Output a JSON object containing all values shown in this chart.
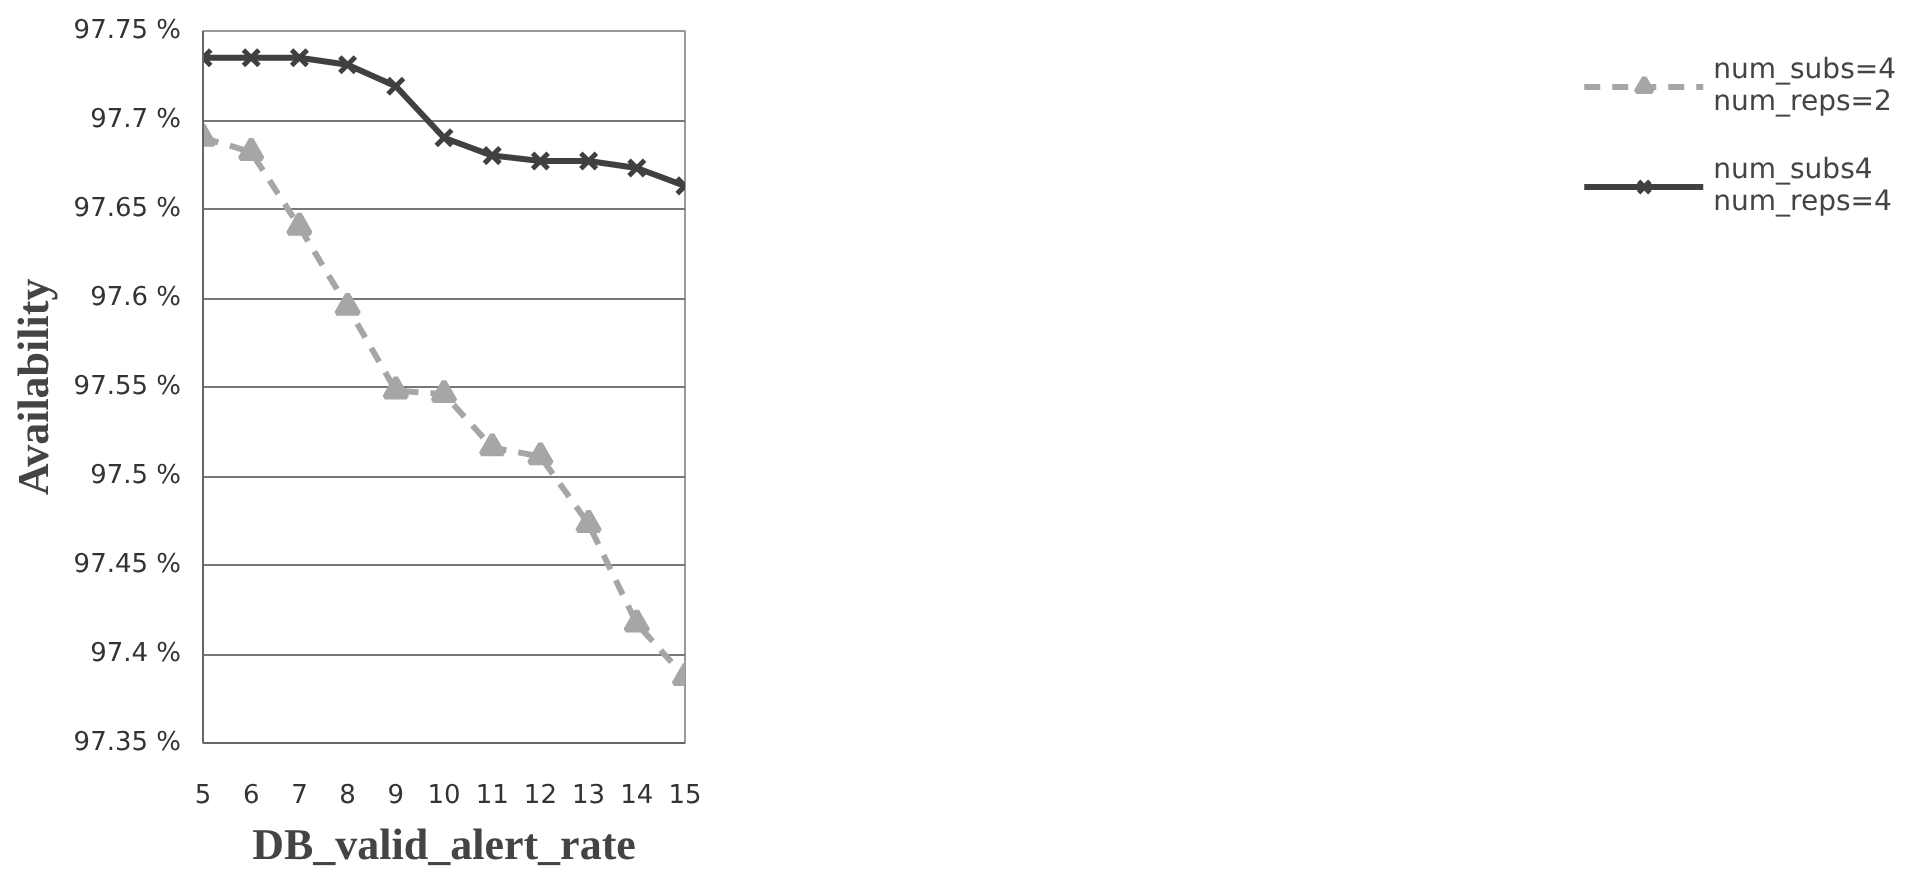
{
  "chart_data": {
    "type": "line",
    "xlabel": "DB_valid_alert_rate",
    "ylabel": "Availability",
    "x": [
      5,
      6,
      7,
      8,
      9,
      10,
      11,
      12,
      13,
      14,
      15
    ],
    "xlim": [
      5,
      15
    ],
    "xticks": [
      5,
      6,
      7,
      8,
      9,
      10,
      11,
      12,
      13,
      14,
      15
    ],
    "ylim": [
      97.35,
      97.75
    ],
    "yticks": [
      {
        "value": 97.35,
        "label": "97.35 %"
      },
      {
        "value": 97.4,
        "label": "97.4 %"
      },
      {
        "value": 97.45,
        "label": "97.45 %"
      },
      {
        "value": 97.5,
        "label": "97.5 %"
      },
      {
        "value": 97.55,
        "label": "97.55 %"
      },
      {
        "value": 97.6,
        "label": "97.6 %"
      },
      {
        "value": 97.65,
        "label": "97.65 %"
      },
      {
        "value": 97.7,
        "label": "97.7 %"
      },
      {
        "value": 97.75,
        "label": "97.75 %"
      }
    ],
    "grid": "y",
    "legend": "right",
    "series": [
      {
        "name": "num_subs=4\nnum_reps=2",
        "color": "#a6a6a6",
        "marker": "triangle",
        "line_style": "dashed",
        "values": [
          97.69,
          97.682,
          97.64,
          97.595,
          97.548,
          97.546,
          97.516,
          97.511,
          97.473,
          97.417,
          97.387
        ]
      },
      {
        "name": "num_subs4\nnum_reps=4",
        "color": "#404040",
        "marker": "cross",
        "line_style": "solid",
        "values": [
          97.735,
          97.735,
          97.735,
          97.731,
          97.719,
          97.69,
          97.68,
          97.677,
          97.677,
          97.673,
          97.663
        ]
      }
    ]
  }
}
